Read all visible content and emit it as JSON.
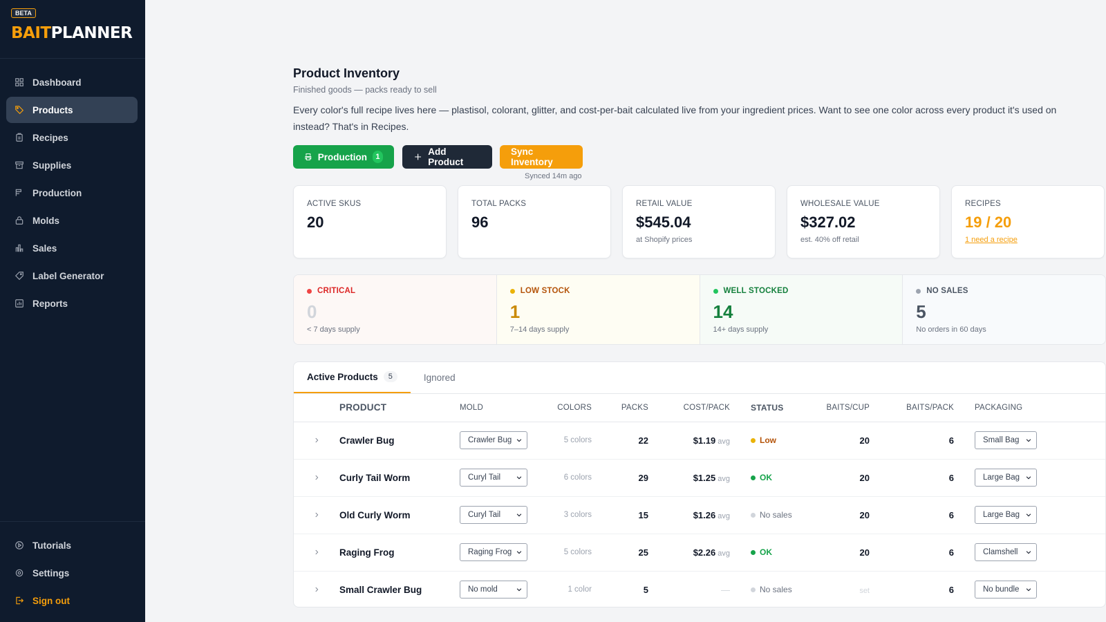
{
  "app": {
    "beta": "BETA",
    "logo_part1": "BAIT",
    "logo_part2": "PLANNER"
  },
  "sidebar": {
    "items": [
      {
        "label": "Dashboard",
        "icon": "grid-icon"
      },
      {
        "label": "Products",
        "icon": "tag-icon",
        "active": true
      },
      {
        "label": "Recipes",
        "icon": "clipboard-icon"
      },
      {
        "label": "Supplies",
        "icon": "archive-icon"
      },
      {
        "label": "Production",
        "icon": "factory-icon"
      },
      {
        "label": "Molds",
        "icon": "lock-icon"
      },
      {
        "label": "Sales",
        "icon": "bar-chart-icon"
      },
      {
        "label": "Label Generator",
        "icon": "label-icon"
      },
      {
        "label": "Reports",
        "icon": "report-icon"
      }
    ],
    "footer": [
      {
        "label": "Tutorials",
        "icon": "play-icon"
      },
      {
        "label": "Settings",
        "icon": "gear-icon"
      },
      {
        "label": "Sign out",
        "icon": "sign-out-icon"
      }
    ]
  },
  "header": {
    "title": "Product Inventory",
    "subtitle": "Finished goods — packs ready to sell",
    "description": "Every color's full recipe lives here — plastisol, colorant, glitter, and cost-per-bait calculated live from your ingredient prices. Want to see one color across every product it's used on instead? That's in Recipes."
  },
  "actions": {
    "production_label": "Production",
    "production_count": "1",
    "add_label": "Add Product",
    "sync_label": "Sync Inventory",
    "synced_text": "Synced 14m ago"
  },
  "stats": [
    {
      "label": "ACTIVE SKUS",
      "value": "20",
      "note": ""
    },
    {
      "label": "TOTAL PACKS",
      "value": "96",
      "note": ""
    },
    {
      "label": "RETAIL VALUE",
      "value": "$545.04",
      "note": "at Shopify prices"
    },
    {
      "label": "WHOLESALE VALUE",
      "value": "$327.02",
      "note": "est. 40% off retail"
    },
    {
      "label": "RECIPES",
      "value": "19 / 20",
      "note": "1 need a recipe"
    }
  ],
  "stock": [
    {
      "label": "CRITICAL",
      "value": "0",
      "sub": "< 7 days supply",
      "color": "#ef4444",
      "num_color": "#d1d5db"
    },
    {
      "label": "LOW STOCK",
      "value": "1",
      "sub": "7–14 days supply",
      "color": "#eab308",
      "num_color": "#ca8a04"
    },
    {
      "label": "WELL STOCKED",
      "value": "14",
      "sub": "14+ days supply",
      "color": "#22c55e",
      "num_color": "#15803d"
    },
    {
      "label": "NO SALES",
      "value": "5",
      "sub": "No orders in 60 days",
      "color": "#9ca3af",
      "num_color": "#4b5563"
    }
  ],
  "tabs": [
    {
      "label": "Active Products",
      "count": "5"
    },
    {
      "label": "Ignored"
    }
  ],
  "table": {
    "headers": [
      "PRODUCT",
      "MOLD",
      "COLORS",
      "PACKS",
      "COST/PACK",
      "STATUS",
      "BAITS/CUP",
      "BAITS/PACK",
      "PACKAGING"
    ],
    "rows": [
      {
        "product": "Crawler Bug",
        "mold": "Crawler Bug",
        "colors": "5 colors",
        "packs": "22",
        "cost": "$1.19",
        "cost_suffix": "avg",
        "status": "Low",
        "status_color": "#eab308",
        "baits_cup": "20",
        "baits_pack": "6",
        "packaging": "Small Bag"
      },
      {
        "product": "Curly Tail Worm",
        "mold": "Curyl Tail",
        "colors": "6 colors",
        "packs": "29",
        "cost": "$1.25",
        "cost_suffix": "avg",
        "status": "OK",
        "status_color": "#16a34a",
        "baits_cup": "20",
        "baits_pack": "6",
        "packaging": "Large Bag"
      },
      {
        "product": "Old Curly Worm",
        "mold": "Curyl Tail",
        "colors": "3 colors",
        "packs": "15",
        "cost": "$1.26",
        "cost_suffix": "avg",
        "status": "No sales",
        "status_color": "#d1d5db",
        "baits_cup": "20",
        "baits_pack": "6",
        "packaging": "Large Bag"
      },
      {
        "product": "Raging Frog",
        "mold": "Raging Frog",
        "colors": "5 colors",
        "packs": "25",
        "cost": "$2.26",
        "cost_suffix": "avg",
        "status": "OK",
        "status_color": "#16a34a",
        "baits_cup": "20",
        "baits_pack": "6",
        "packaging": "Clamshell"
      },
      {
        "product": "Small Crawler Bug",
        "mold": "No mold",
        "colors": "1 color",
        "packs": "5",
        "cost": "—",
        "cost_suffix": "",
        "status": "No sales",
        "status_color": "#d1d5db",
        "baits_cup": "set",
        "baits_pack": "6",
        "packaging": "No bundle"
      }
    ]
  }
}
